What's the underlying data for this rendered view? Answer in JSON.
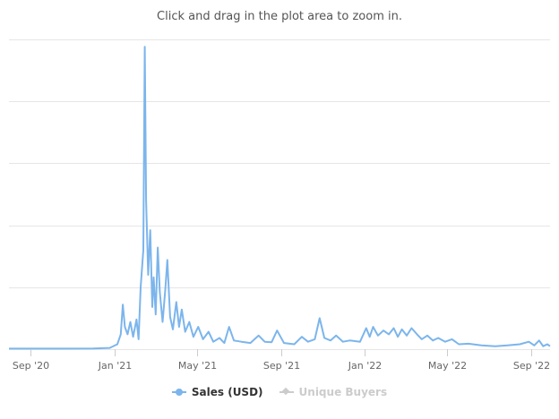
{
  "chart": {
    "subtitle": "Click and drag in the plot area to zoom in."
  },
  "colors": {
    "sales": "#7cb5ec",
    "inactive": "#cccccc",
    "grid": "#e6e6e6",
    "axis_label": "#666666"
  },
  "chart_data": {
    "type": "line",
    "title": "",
    "subtitle": "Click and drag in the plot area to zoom in.",
    "xlabel": "",
    "ylabel": "",
    "x_axis_type": "datetime",
    "xlim": [
      "2020-07-31",
      "2022-09-28"
    ],
    "x_tick_labels": [
      "Sep '20",
      "Jan '21",
      "May '21",
      "Sep '21",
      "Jan '22",
      "May '22",
      "Sep '22"
    ],
    "y_tick_labels": [],
    "y_gridlines": 5,
    "grid": true,
    "legend_position": "bottom",
    "series": [
      {
        "name": "Sales (USD)",
        "visible": true,
        "points": [
          [
            "2020-07-31",
            0.02
          ],
          [
            "2020-09-01",
            0.02
          ],
          [
            "2020-10-15",
            0.02
          ],
          [
            "2020-12-01",
            0.03
          ],
          [
            "2020-12-25",
            0.05
          ],
          [
            "2021-01-05",
            0.2
          ],
          [
            "2021-01-10",
            0.6
          ],
          [
            "2021-01-13",
            1.8
          ],
          [
            "2021-01-16",
            0.9
          ],
          [
            "2021-01-20",
            0.6
          ],
          [
            "2021-01-24",
            1.1
          ],
          [
            "2021-01-28",
            0.5
          ],
          [
            "2021-02-02",
            1.2
          ],
          [
            "2021-02-05",
            0.4
          ],
          [
            "2021-02-08",
            2.5
          ],
          [
            "2021-02-12",
            4.0
          ],
          [
            "2021-02-14",
            12.2
          ],
          [
            "2021-02-16",
            6.0
          ],
          [
            "2021-02-19",
            3.0
          ],
          [
            "2021-02-22",
            4.8
          ],
          [
            "2021-02-25",
            1.7
          ],
          [
            "2021-02-27",
            2.9
          ],
          [
            "2021-03-02",
            1.4
          ],
          [
            "2021-03-05",
            4.1
          ],
          [
            "2021-03-08",
            2.3
          ],
          [
            "2021-03-12",
            1.1
          ],
          [
            "2021-03-16",
            2.4
          ],
          [
            "2021-03-19",
            3.6
          ],
          [
            "2021-03-23",
            1.3
          ],
          [
            "2021-03-27",
            0.8
          ],
          [
            "2021-04-01",
            1.9
          ],
          [
            "2021-04-05",
            0.9
          ],
          [
            "2021-04-09",
            1.6
          ],
          [
            "2021-04-14",
            0.7
          ],
          [
            "2021-04-20",
            1.1
          ],
          [
            "2021-04-26",
            0.5
          ],
          [
            "2021-05-03",
            0.9
          ],
          [
            "2021-05-10",
            0.4
          ],
          [
            "2021-05-18",
            0.7
          ],
          [
            "2021-05-25",
            0.3
          ],
          [
            "2021-06-03",
            0.45
          ],
          [
            "2021-06-10",
            0.25
          ],
          [
            "2021-06-17",
            0.9
          ],
          [
            "2021-06-24",
            0.35
          ],
          [
            "2021-07-05",
            0.3
          ],
          [
            "2021-07-18",
            0.25
          ],
          [
            "2021-07-30",
            0.55
          ],
          [
            "2021-08-08",
            0.3
          ],
          [
            "2021-08-18",
            0.28
          ],
          [
            "2021-08-26",
            0.75
          ],
          [
            "2021-09-05",
            0.25
          ],
          [
            "2021-09-20",
            0.2
          ],
          [
            "2021-10-01",
            0.5
          ],
          [
            "2021-10-10",
            0.3
          ],
          [
            "2021-10-20",
            0.4
          ],
          [
            "2021-10-27",
            1.25
          ],
          [
            "2021-11-03",
            0.45
          ],
          [
            "2021-11-12",
            0.35
          ],
          [
            "2021-11-20",
            0.55
          ],
          [
            "2021-11-30",
            0.3
          ],
          [
            "2021-12-10",
            0.35
          ],
          [
            "2021-12-25",
            0.3
          ],
          [
            "2022-01-03",
            0.85
          ],
          [
            "2022-01-08",
            0.5
          ],
          [
            "2022-01-13",
            0.9
          ],
          [
            "2022-01-20",
            0.55
          ],
          [
            "2022-01-28",
            0.75
          ],
          [
            "2022-02-05",
            0.6
          ],
          [
            "2022-02-12",
            0.85
          ],
          [
            "2022-02-18",
            0.5
          ],
          [
            "2022-02-24",
            0.8
          ],
          [
            "2022-03-03",
            0.55
          ],
          [
            "2022-03-10",
            0.85
          ],
          [
            "2022-03-18",
            0.6
          ],
          [
            "2022-03-25",
            0.4
          ],
          [
            "2022-04-02",
            0.55
          ],
          [
            "2022-04-10",
            0.35
          ],
          [
            "2022-04-18",
            0.45
          ],
          [
            "2022-04-28",
            0.3
          ],
          [
            "2022-05-08",
            0.4
          ],
          [
            "2022-05-18",
            0.2
          ],
          [
            "2022-06-01",
            0.22
          ],
          [
            "2022-06-20",
            0.15
          ],
          [
            "2022-07-10",
            0.12
          ],
          [
            "2022-07-28",
            0.15
          ],
          [
            "2022-08-15",
            0.2
          ],
          [
            "2022-08-28",
            0.3
          ],
          [
            "2022-09-05",
            0.15
          ],
          [
            "2022-09-12",
            0.35
          ],
          [
            "2022-09-18",
            0.12
          ],
          [
            "2022-09-24",
            0.2
          ],
          [
            "2022-09-28",
            0.12
          ]
        ]
      },
      {
        "name": "Unique Buyers",
        "visible": false,
        "points": []
      }
    ]
  },
  "legend": {
    "items": [
      {
        "label": "Sales (USD)"
      },
      {
        "label": "Unique Buyers"
      }
    ]
  }
}
